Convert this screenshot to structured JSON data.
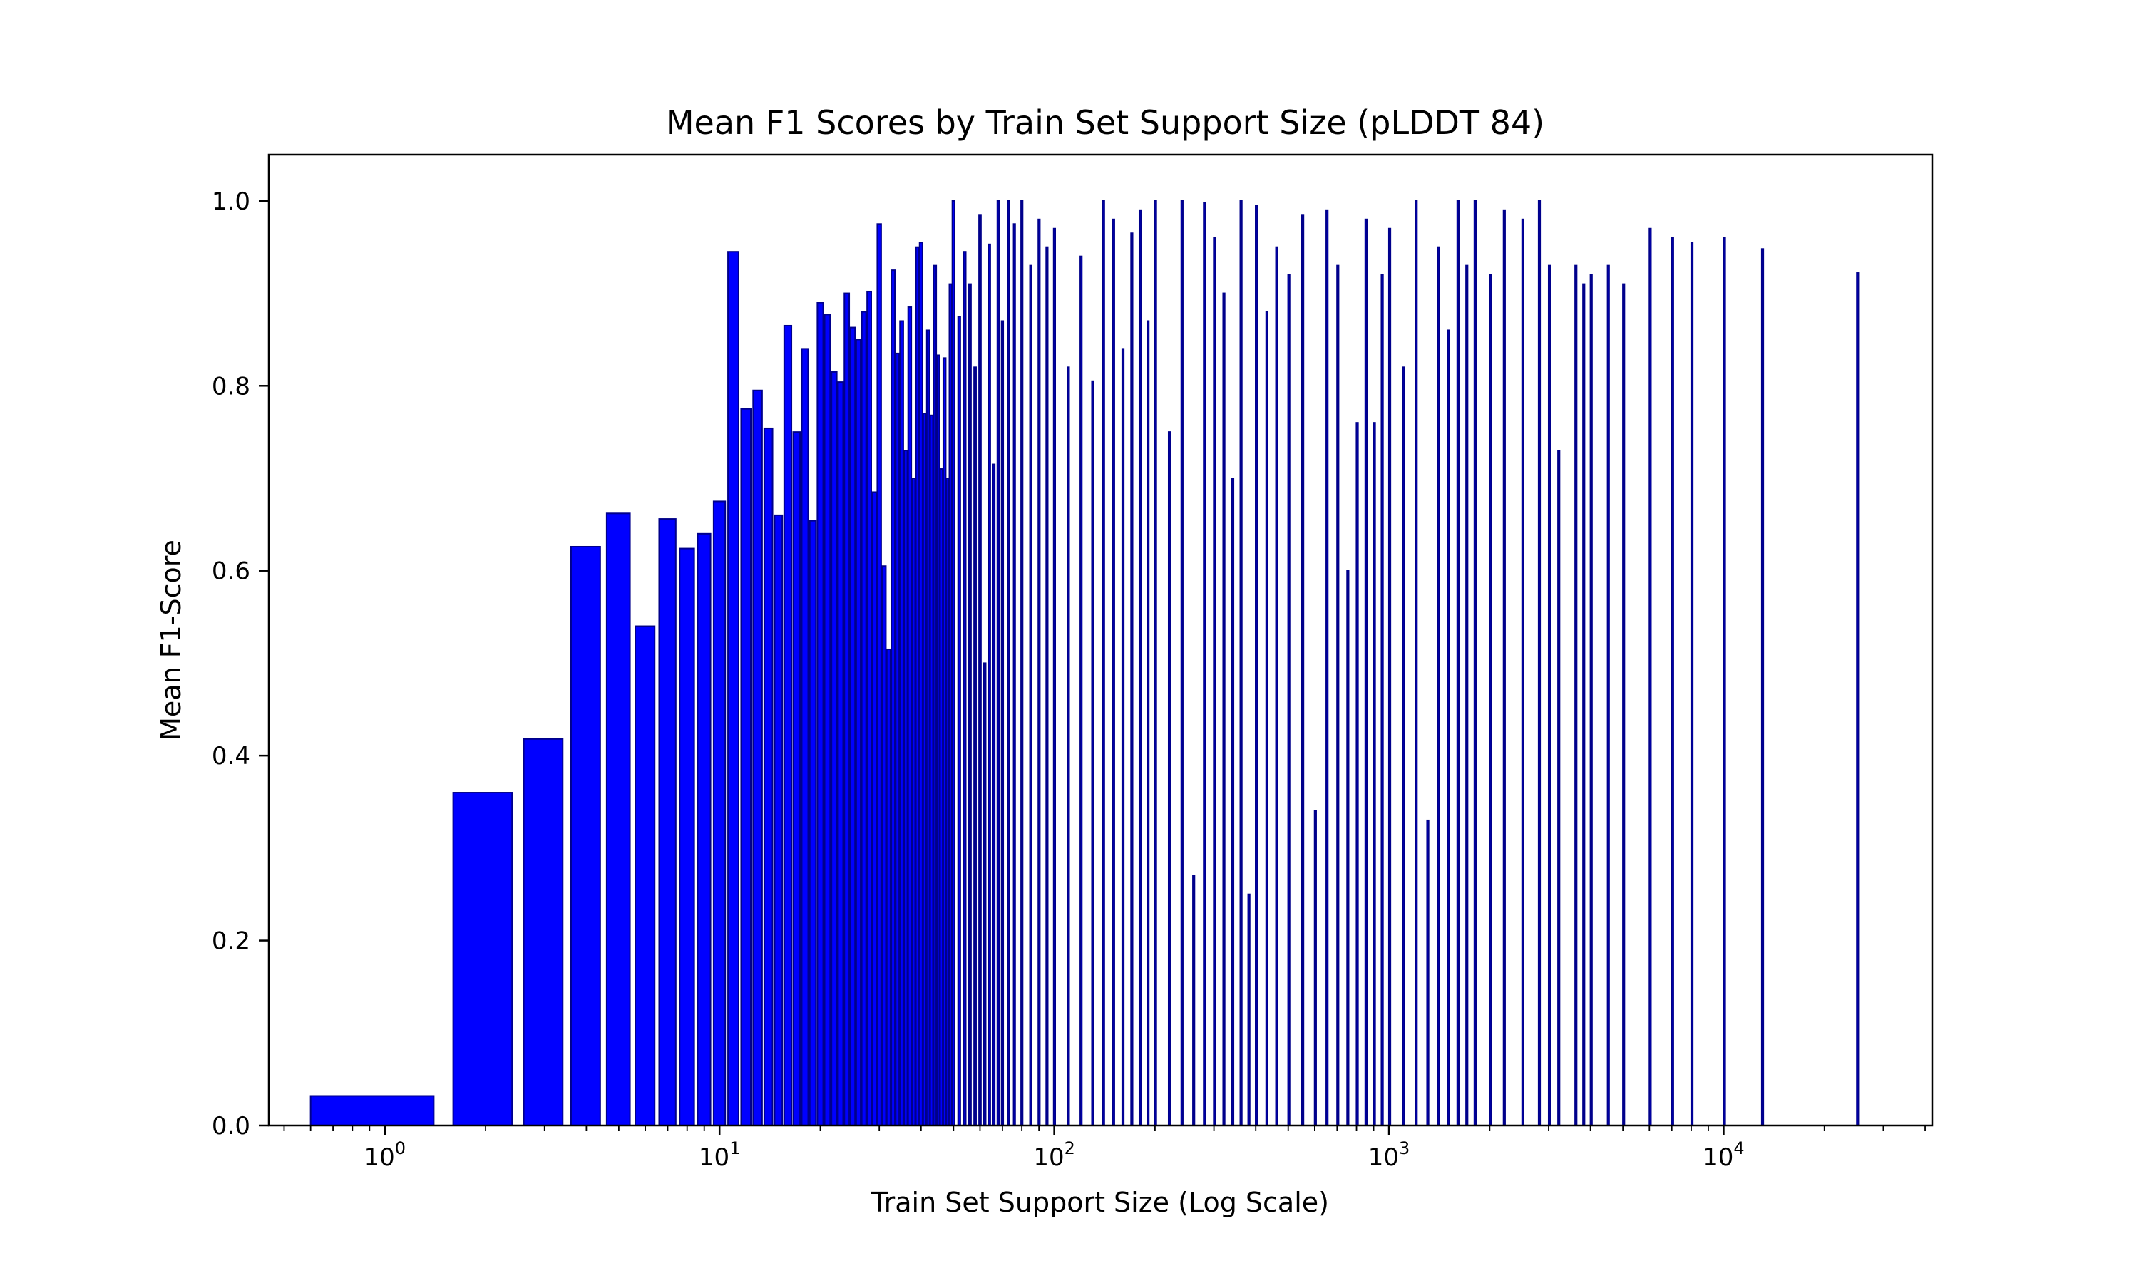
{
  "chart_data": {
    "type": "bar",
    "title": "Mean F1 Scores by Train Set Support Size (pLDDT 84)",
    "xlabel": "Train Set Support Size (Log Scale)",
    "ylabel": "Mean F1-Score",
    "xscale": "log",
    "xlim": [
      0.45,
      42000
    ],
    "ylim": [
      0,
      1.05
    ],
    "grid": false,
    "bar_color": "#0000ff",
    "edge_color": "#00008b",
    "x_ticks": [
      {
        "value": 1,
        "base": "10",
        "exp": "0"
      },
      {
        "value": 10,
        "base": "10",
        "exp": "1"
      },
      {
        "value": 100,
        "base": "10",
        "exp": "2"
      },
      {
        "value": 1000,
        "base": "10",
        "exp": "3"
      },
      {
        "value": 10000,
        "base": "10",
        "exp": "4"
      }
    ],
    "y_ticks": [
      "0.0",
      "0.2",
      "0.4",
      "0.6",
      "0.8",
      "1.0"
    ],
    "x": [
      1,
      2,
      3,
      4,
      5,
      6,
      7,
      8,
      9,
      10,
      11,
      12,
      13,
      14,
      15,
      16,
      17,
      18,
      19,
      20,
      21,
      22,
      23,
      24,
      25,
      26,
      27,
      28,
      29,
      30,
      31,
      32,
      33,
      34,
      35,
      36,
      37,
      38,
      39,
      40,
      41,
      42,
      43,
      44,
      45,
      46,
      47,
      48,
      49,
      50,
      52,
      54,
      56,
      58,
      60,
      62,
      64,
      66,
      68,
      70,
      73,
      76,
      80,
      85,
      90,
      95,
      100,
      110,
      120,
      130,
      140,
      150,
      160,
      170,
      180,
      190,
      200,
      220,
      240,
      260,
      280,
      300,
      320,
      340,
      360,
      380,
      400,
      430,
      460,
      500,
      550,
      600,
      650,
      700,
      750,
      800,
      850,
      900,
      950,
      1000,
      1100,
      1200,
      1300,
      1400,
      1500,
      1600,
      1700,
      1800,
      2000,
      2200,
      2500,
      2800,
      3000,
      3200,
      3600,
      3800,
      4000,
      4500,
      5000,
      6000,
      7000,
      8000,
      10000,
      13000,
      25000
    ],
    "values": [
      0.032,
      0.36,
      0.418,
      0.626,
      0.662,
      0.54,
      0.656,
      0.624,
      0.64,
      0.675,
      0.945,
      0.775,
      0.795,
      0.754,
      0.66,
      0.865,
      0.75,
      0.84,
      0.654,
      0.89,
      0.877,
      0.815,
      0.804,
      0.9,
      0.863,
      0.85,
      0.88,
      0.902,
      0.685,
      0.975,
      0.605,
      0.515,
      0.925,
      0.835,
      0.87,
      0.73,
      0.885,
      0.7,
      0.95,
      0.955,
      0.77,
      0.86,
      0.768,
      0.93,
      0.833,
      0.71,
      0.83,
      0.7,
      0.91,
      1.0,
      0.875,
      0.945,
      0.91,
      0.82,
      0.985,
      0.5,
      0.953,
      0.715,
      1.0,
      0.87,
      1.0,
      0.975,
      1.0,
      0.93,
      0.98,
      0.95,
      0.97,
      0.82,
      0.94,
      0.805,
      1.0,
      0.98,
      0.84,
      0.965,
      0.99,
      0.87,
      1.0,
      0.75,
      1.0,
      0.27,
      0.998,
      0.96,
      0.9,
      0.7,
      1.0,
      0.25,
      0.995,
      0.88,
      0.95,
      0.92,
      0.985,
      0.34,
      0.99,
      0.93,
      0.6,
      0.76,
      0.98,
      0.76,
      0.92,
      0.97,
      0.82,
      1.0,
      0.33,
      0.95,
      0.86,
      1.0,
      0.93,
      1.0,
      0.92,
      0.99,
      0.98,
      1.0,
      0.93,
      0.73,
      0.93,
      0.91,
      0.92,
      0.93,
      0.91,
      0.97,
      0.96,
      0.955,
      0.96,
      0.948,
      0.922
    ]
  }
}
